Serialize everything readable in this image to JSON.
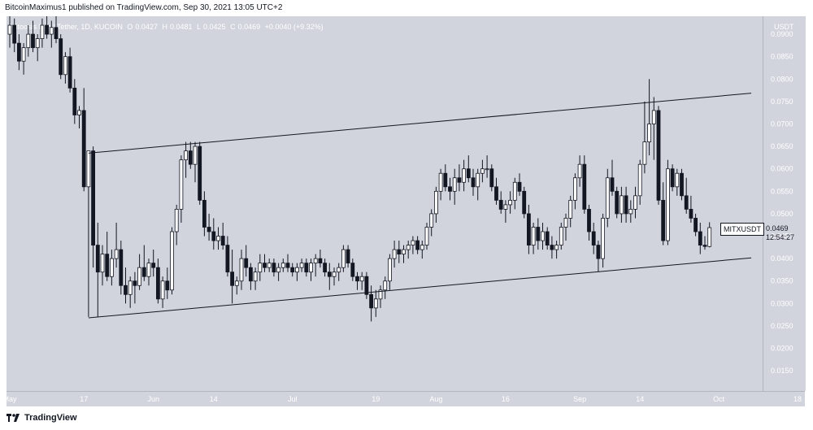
{
  "header": {
    "published": "BitcoinMaximus1 published on TradingView.com, Sep 30, 2021 13:05 UTC+2"
  },
  "legend": {
    "symbol": "Mitoosis Lab / Tether, 1D, KUCOIN",
    "o_label": "O",
    "o_value": "0.0427",
    "h_label": "H",
    "h_value": "0.0481",
    "l_label": "L",
    "l_value": "0.0425",
    "c_label": "C",
    "c_value": "0.0469",
    "change": "+0.0040 (+9.32%)"
  },
  "price_axis": {
    "currency": "USDT",
    "ticks": [
      "0.0900",
      "0.0850",
      "0.0800",
      "0.0750",
      "0.0700",
      "0.0650",
      "0.0600",
      "0.0550",
      "0.0500",
      "0.0450",
      "0.0400",
      "0.0350",
      "0.0300",
      "0.0250",
      "0.0200",
      "0.0150"
    ]
  },
  "symbol_label": "MITXUSDT",
  "last_price": "0.0469",
  "countdown": "12:54:27",
  "time_axis": {
    "ticks": [
      "May",
      "17",
      "Jun",
      "14",
      "Jul",
      "19",
      "Aug",
      "16",
      "Sep",
      "14",
      "Oct",
      "18"
    ]
  },
  "footer": {
    "brand": "TradingView",
    "logo": "tradingview-logo-icon"
  },
  "colors": {
    "background": "#d1d4dc",
    "up_candle": "#ffffff",
    "down_candle": "#131722",
    "trendline": "#131722"
  },
  "chart_data": {
    "type": "candlestick",
    "title": "Mitoosis Lab / Tether, 1D, KUCOIN",
    "ylabel": "USDT",
    "ylim": [
      0.0105,
      0.094
    ],
    "x_start": "2021-05-01",
    "channel": {
      "upper": [
        [
          "2021-05-18",
          0.0635
        ],
        [
          "2021-10-01",
          0.0765
        ]
      ],
      "lower": [
        [
          "2021-05-18",
          0.0268
        ],
        [
          "2021-10-01",
          0.0398
        ]
      ]
    },
    "candles": [
      [
        0.09,
        0.094,
        0.087,
        0.092
      ],
      [
        0.092,
        0.0935,
        0.086,
        0.088
      ],
      [
        0.088,
        0.09,
        0.082,
        0.084
      ],
      [
        0.084,
        0.088,
        0.081,
        0.087
      ],
      [
        0.087,
        0.092,
        0.085,
        0.09
      ],
      [
        0.09,
        0.093,
        0.086,
        0.087
      ],
      [
        0.087,
        0.09,
        0.084,
        0.089
      ],
      [
        0.089,
        0.0935,
        0.087,
        0.092
      ],
      [
        0.092,
        0.094,
        0.089,
        0.09
      ],
      [
        0.09,
        0.093,
        0.087,
        0.0915
      ],
      [
        0.0915,
        0.094,
        0.088,
        0.089
      ],
      [
        0.089,
        0.09,
        0.08,
        0.081
      ],
      [
        0.081,
        0.086,
        0.079,
        0.085
      ],
      [
        0.085,
        0.087,
        0.077,
        0.078
      ],
      [
        0.078,
        0.08,
        0.07,
        0.072
      ],
      [
        0.072,
        0.074,
        0.069,
        0.073
      ],
      [
        0.073,
        0.078,
        0.055,
        0.056
      ],
      [
        0.056,
        0.064,
        0.027,
        0.064
      ],
      [
        0.064,
        0.065,
        0.038,
        0.043
      ],
      [
        0.043,
        0.048,
        0.027,
        0.037
      ],
      [
        0.037,
        0.043,
        0.034,
        0.041
      ],
      [
        0.041,
        0.046,
        0.035,
        0.036
      ],
      [
        0.036,
        0.042,
        0.034,
        0.04
      ],
      [
        0.04,
        0.048,
        0.038,
        0.042
      ],
      [
        0.042,
        0.044,
        0.032,
        0.034
      ],
      [
        0.034,
        0.038,
        0.03,
        0.032
      ],
      [
        0.032,
        0.036,
        0.029,
        0.035
      ],
      [
        0.035,
        0.037,
        0.03,
        0.034
      ],
      [
        0.034,
        0.041,
        0.033,
        0.038
      ],
      [
        0.038,
        0.043,
        0.035,
        0.036
      ],
      [
        0.036,
        0.04,
        0.034,
        0.039
      ],
      [
        0.039,
        0.042,
        0.036,
        0.038
      ],
      [
        0.038,
        0.04,
        0.03,
        0.031
      ],
      [
        0.031,
        0.036,
        0.029,
        0.035
      ],
      [
        0.035,
        0.038,
        0.031,
        0.033
      ],
      [
        0.033,
        0.047,
        0.032,
        0.046
      ],
      [
        0.046,
        0.052,
        0.043,
        0.051
      ],
      [
        0.051,
        0.063,
        0.048,
        0.062
      ],
      [
        0.062,
        0.066,
        0.058,
        0.064
      ],
      [
        0.064,
        0.066,
        0.06,
        0.061
      ],
      [
        0.061,
        0.066,
        0.057,
        0.065
      ],
      [
        0.065,
        0.066,
        0.052,
        0.053
      ],
      [
        0.053,
        0.055,
        0.045,
        0.047
      ],
      [
        0.047,
        0.05,
        0.044,
        0.046
      ],
      [
        0.046,
        0.049,
        0.042,
        0.044
      ],
      [
        0.044,
        0.047,
        0.042,
        0.045
      ],
      [
        0.045,
        0.048,
        0.042,
        0.043
      ],
      [
        0.043,
        0.045,
        0.036,
        0.037
      ],
      [
        0.037,
        0.042,
        0.03,
        0.034
      ],
      [
        0.034,
        0.036,
        0.032,
        0.035
      ],
      [
        0.035,
        0.042,
        0.033,
        0.04
      ],
      [
        0.04,
        0.043,
        0.036,
        0.038
      ],
      [
        0.038,
        0.039,
        0.033,
        0.035
      ],
      [
        0.035,
        0.038,
        0.033,
        0.037
      ],
      [
        0.037,
        0.041,
        0.035,
        0.039
      ],
      [
        0.039,
        0.041,
        0.037,
        0.038
      ],
      [
        0.038,
        0.04,
        0.037,
        0.039
      ],
      [
        0.039,
        0.04,
        0.036,
        0.037
      ],
      [
        0.037,
        0.039,
        0.035,
        0.038
      ],
      [
        0.038,
        0.04,
        0.037,
        0.039
      ],
      [
        0.039,
        0.041,
        0.037,
        0.038
      ],
      [
        0.038,
        0.039,
        0.036,
        0.037
      ],
      [
        0.037,
        0.039,
        0.035,
        0.038
      ],
      [
        0.038,
        0.04,
        0.037,
        0.039
      ],
      [
        0.039,
        0.04,
        0.036,
        0.037
      ],
      [
        0.037,
        0.04,
        0.035,
        0.039
      ],
      [
        0.039,
        0.041,
        0.036,
        0.04
      ],
      [
        0.04,
        0.042,
        0.038,
        0.039
      ],
      [
        0.039,
        0.04,
        0.036,
        0.037
      ],
      [
        0.037,
        0.039,
        0.033,
        0.036
      ],
      [
        0.036,
        0.038,
        0.034,
        0.037
      ],
      [
        0.037,
        0.039,
        0.035,
        0.038
      ],
      [
        0.038,
        0.043,
        0.037,
        0.042
      ],
      [
        0.042,
        0.043,
        0.038,
        0.039
      ],
      [
        0.039,
        0.04,
        0.035,
        0.036
      ],
      [
        0.036,
        0.037,
        0.033,
        0.035
      ],
      [
        0.035,
        0.037,
        0.033,
        0.036
      ],
      [
        0.036,
        0.037,
        0.031,
        0.032
      ],
      [
        0.032,
        0.034,
        0.026,
        0.029
      ],
      [
        0.029,
        0.033,
        0.027,
        0.031
      ],
      [
        0.031,
        0.034,
        0.029,
        0.033
      ],
      [
        0.033,
        0.036,
        0.031,
        0.035
      ],
      [
        0.035,
        0.041,
        0.033,
        0.04
      ],
      [
        0.04,
        0.044,
        0.038,
        0.042
      ],
      [
        0.042,
        0.044,
        0.039,
        0.041
      ],
      [
        0.041,
        0.043,
        0.039,
        0.042
      ],
      [
        0.042,
        0.044,
        0.04,
        0.043
      ],
      [
        0.043,
        0.045,
        0.041,
        0.044
      ],
      [
        0.044,
        0.045,
        0.041,
        0.042
      ],
      [
        0.042,
        0.044,
        0.04,
        0.043
      ],
      [
        0.043,
        0.048,
        0.042,
        0.047
      ],
      [
        0.047,
        0.051,
        0.045,
        0.05
      ],
      [
        0.05,
        0.056,
        0.048,
        0.055
      ],
      [
        0.055,
        0.06,
        0.053,
        0.059
      ],
      [
        0.059,
        0.061,
        0.055,
        0.056
      ],
      [
        0.056,
        0.058,
        0.053,
        0.055
      ],
      [
        0.055,
        0.06,
        0.052,
        0.058
      ],
      [
        0.058,
        0.061,
        0.055,
        0.057
      ],
      [
        0.057,
        0.062,
        0.055,
        0.06
      ],
      [
        0.06,
        0.063,
        0.057,
        0.058
      ],
      [
        0.058,
        0.06,
        0.054,
        0.056
      ],
      [
        0.056,
        0.06,
        0.053,
        0.059
      ],
      [
        0.059,
        0.062,
        0.057,
        0.06
      ],
      [
        0.06,
        0.063,
        0.058,
        0.06
      ],
      [
        0.06,
        0.061,
        0.055,
        0.056
      ],
      [
        0.056,
        0.058,
        0.052,
        0.053
      ],
      [
        0.053,
        0.055,
        0.05,
        0.051
      ],
      [
        0.051,
        0.053,
        0.048,
        0.052
      ],
      [
        0.052,
        0.055,
        0.05,
        0.053
      ],
      [
        0.053,
        0.058,
        0.051,
        0.057
      ],
      [
        0.057,
        0.059,
        0.054,
        0.055
      ],
      [
        0.055,
        0.056,
        0.049,
        0.05
      ],
      [
        0.05,
        0.052,
        0.041,
        0.043
      ],
      [
        0.043,
        0.048,
        0.041,
        0.047
      ],
      [
        0.047,
        0.049,
        0.042,
        0.044
      ],
      [
        0.044,
        0.048,
        0.042,
        0.046
      ],
      [
        0.046,
        0.047,
        0.042,
        0.043
      ],
      [
        0.043,
        0.045,
        0.04,
        0.042
      ],
      [
        0.042,
        0.044,
        0.04,
        0.043
      ],
      [
        0.043,
        0.048,
        0.042,
        0.047
      ],
      [
        0.047,
        0.05,
        0.044,
        0.049
      ],
      [
        0.049,
        0.054,
        0.047,
        0.053
      ],
      [
        0.053,
        0.059,
        0.051,
        0.058
      ],
      [
        0.058,
        0.063,
        0.056,
        0.061
      ],
      [
        0.061,
        0.063,
        0.05,
        0.051
      ],
      [
        0.051,
        0.052,
        0.044,
        0.046
      ],
      [
        0.046,
        0.048,
        0.041,
        0.043
      ],
      [
        0.043,
        0.044,
        0.037,
        0.04
      ],
      [
        0.04,
        0.05,
        0.038,
        0.049
      ],
      [
        0.049,
        0.06,
        0.047,
        0.058
      ],
      [
        0.058,
        0.062,
        0.054,
        0.055
      ],
      [
        0.055,
        0.056,
        0.049,
        0.05
      ],
      [
        0.05,
        0.056,
        0.048,
        0.054
      ],
      [
        0.054,
        0.056,
        0.048,
        0.05
      ],
      [
        0.05,
        0.053,
        0.048,
        0.051
      ],
      [
        0.051,
        0.056,
        0.049,
        0.054
      ],
      [
        0.054,
        0.062,
        0.052,
        0.061
      ],
      [
        0.061,
        0.075,
        0.059,
        0.066
      ],
      [
        0.066,
        0.08,
        0.063,
        0.07
      ],
      [
        0.07,
        0.076,
        0.062,
        0.073
      ],
      [
        0.073,
        0.074,
        0.052,
        0.053
      ],
      [
        0.053,
        0.057,
        0.043,
        0.044
      ],
      [
        0.044,
        0.062,
        0.043,
        0.06
      ],
      [
        0.06,
        0.061,
        0.055,
        0.056
      ],
      [
        0.056,
        0.06,
        0.054,
        0.059
      ],
      [
        0.059,
        0.06,
        0.053,
        0.054
      ],
      [
        0.054,
        0.058,
        0.05,
        0.051
      ],
      [
        0.051,
        0.054,
        0.048,
        0.049
      ],
      [
        0.049,
        0.05,
        0.045,
        0.046
      ],
      [
        0.046,
        0.048,
        0.041,
        0.043
      ],
      [
        0.043,
        0.045,
        0.042,
        0.0427
      ],
      [
        0.0427,
        0.0481,
        0.0425,
        0.0469
      ]
    ]
  }
}
